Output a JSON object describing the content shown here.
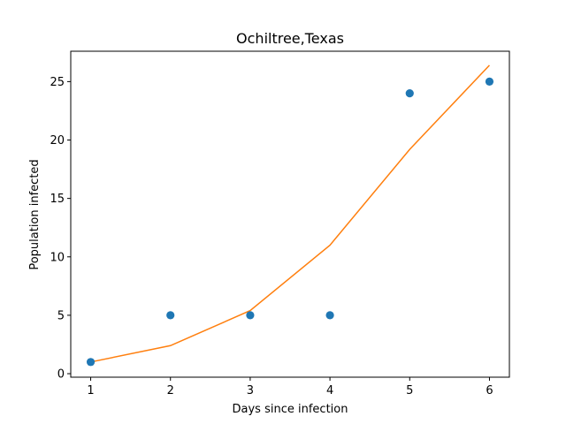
{
  "chart_data": {
    "type": "scatter",
    "title": "Ochiltree,Texas",
    "xlabel": "Days since infection",
    "ylabel": "Population infected",
    "xlim": [
      0.75,
      6.25
    ],
    "ylim": [
      -0.3,
      27.6
    ],
    "xticks": [
      1,
      2,
      3,
      4,
      5,
      6
    ],
    "yticks": [
      0,
      5,
      10,
      15,
      20,
      25
    ],
    "grid": false,
    "series": [
      {
        "kind": "scatter",
        "color": "#1f77b4",
        "x": [
          1,
          2,
          3,
          4,
          5,
          6
        ],
        "y": [
          1,
          5,
          5,
          5,
          24,
          25
        ]
      },
      {
        "kind": "line",
        "color": "#ff7f0e",
        "x": [
          1,
          2,
          3,
          4,
          5,
          6
        ],
        "y": [
          1.0,
          2.4,
          5.4,
          11.0,
          19.2,
          26.4
        ]
      }
    ]
  }
}
